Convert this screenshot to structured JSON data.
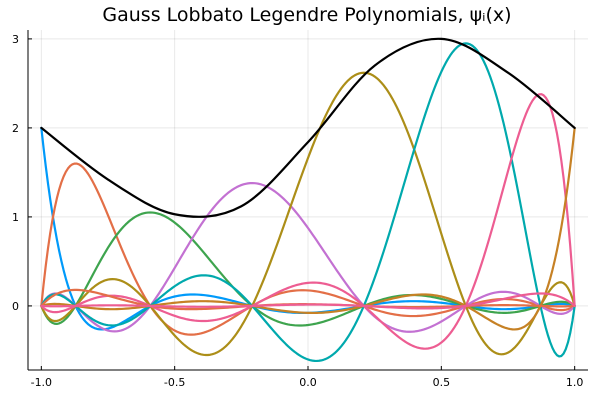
{
  "chart_data": {
    "type": "line",
    "title": "Gauss Lobbato Legendre Polynomials, ψᵢ(x)",
    "xlabel": "",
    "ylabel": "",
    "xlim": [
      -1.05,
      1.05
    ],
    "ylim": [
      -0.72,
      3.1
    ],
    "x_ticks": [
      -1.0,
      -0.5,
      0.0,
      0.5,
      1.0
    ],
    "x_tick_labels": [
      "-1.0",
      "-0.5",
      "0.0",
      "0.5",
      "1.0"
    ],
    "y_ticks": [
      0,
      1,
      2,
      3
    ],
    "y_tick_labels": [
      "0",
      "1",
      "2",
      "3"
    ],
    "grid": true,
    "legend": "none",
    "nodes": [
      -1.0,
      -0.8717,
      -0.5917,
      -0.2093,
      0.2093,
      0.5917,
      0.8717,
      1.0
    ],
    "curve_function": "ψᵢ(x) = cᵢ·Lᵢ(x), Lᵢ = Lagrange basis through nodes",
    "series": [
      {
        "node_index": 0,
        "scale": 2.0,
        "color": "#009AFA"
      },
      {
        "node_index": 1,
        "scale": 1.6,
        "color": "#E36F47"
      },
      {
        "node_index": 2,
        "scale": 1.05,
        "color": "#3EA44E"
      },
      {
        "node_index": 3,
        "scale": 1.38,
        "color": "#C371D2"
      },
      {
        "node_index": 4,
        "scale": 2.62,
        "color": "#AC8E18"
      },
      {
        "node_index": 5,
        "scale": 2.95,
        "color": "#00A9AD"
      },
      {
        "node_index": 6,
        "scale": 2.38,
        "color": "#ED5D92"
      },
      {
        "node_index": 7,
        "scale": 2.0,
        "color": "#C68125"
      },
      {
        "node_index": 1,
        "scale": 0.18,
        "color": "#E36F47"
      },
      {
        "node_index": 6,
        "scale": 0.14,
        "color": "#ED5D92"
      }
    ],
    "sum_series": {
      "color": "#000000",
      "x": [
        -1.0,
        -0.75,
        -0.5,
        -0.25,
        0.0,
        0.25,
        0.5,
        0.75,
        1.0
      ],
      "values": [
        2.0,
        1.42,
        1.03,
        1.12,
        1.84,
        2.7,
        3.0,
        2.62,
        2.0
      ]
    }
  }
}
